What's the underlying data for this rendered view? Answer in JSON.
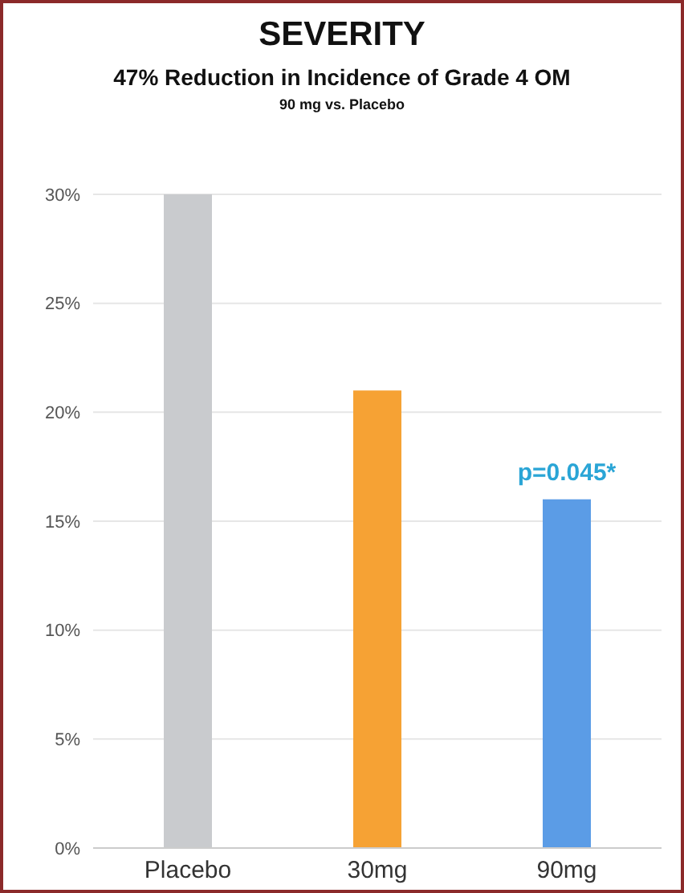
{
  "chart_data": {
    "type": "bar",
    "title": "SEVERITY",
    "subtitle": "47% Reduction in Incidence of Grade 4 OM",
    "annotations": [
      "90 mg vs. Placebo",
      {
        "text": "p=0.045*",
        "x": "90mg",
        "y": 16
      }
    ],
    "categories": [
      "Placebo",
      "30mg",
      "90mg"
    ],
    "values": [
      30,
      21,
      16
    ],
    "colors": [
      "#c9cbce",
      "#f6a234",
      "#5b9ce6"
    ],
    "ylim": [
      0,
      30
    ],
    "yticks": [
      {
        "value": 0,
        "label": "0%"
      },
      {
        "value": 5,
        "label": "5%"
      },
      {
        "value": 10,
        "label": "10%"
      },
      {
        "value": 15,
        "label": "15%"
      },
      {
        "value": 20,
        "label": "20%"
      },
      {
        "value": 25,
        "label": "25%"
      },
      {
        "value": 30,
        "label": "30%"
      }
    ],
    "grid": "y"
  }
}
